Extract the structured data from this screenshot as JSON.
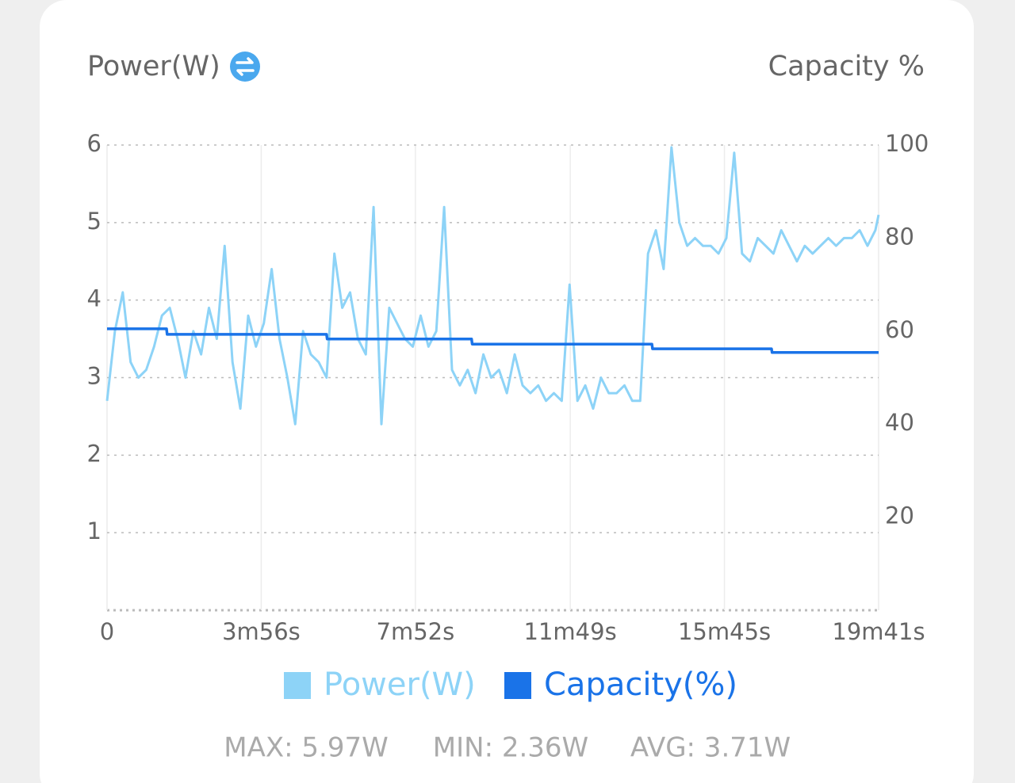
{
  "chart_data": {
    "type": "line",
    "y_label": "Power(W)",
    "y2_label": "Capacity %",
    "xlim": [
      0,
      1181
    ],
    "xticks": [
      0,
      {
        "value": 236,
        "label": "3m56s"
      },
      {
        "value": 472,
        "label": "7m52s"
      },
      {
        "value": 709,
        "label": "11m49s"
      },
      {
        "value": 945,
        "label": "15m45s"
      },
      {
        "value": 1181,
        "label": "19m41s"
      }
    ],
    "ylim": [
      0,
      6
    ],
    "yticks": [
      1,
      2,
      3,
      4,
      5,
      6
    ],
    "y2lim": [
      0,
      100
    ],
    "y2ticks": [
      20,
      40,
      60,
      80,
      100
    ],
    "grid": true,
    "series": [
      {
        "name": "Power(W)",
        "color": "#8dd3f7",
        "x": [
          0,
          12,
          24,
          36,
          48,
          60,
          72,
          84,
          96,
          108,
          120,
          132,
          144,
          156,
          168,
          180,
          192,
          204,
          216,
          228,
          240,
          252,
          264,
          276,
          288,
          300,
          312,
          324,
          336,
          348,
          360,
          372,
          384,
          396,
          408,
          420,
          432,
          444,
          456,
          468,
          480,
          492,
          504,
          516,
          528,
          540,
          552,
          564,
          576,
          588,
          600,
          612,
          624,
          636,
          648,
          660,
          672,
          684,
          696,
          708,
          720,
          732,
          744,
          756,
          768,
          780,
          792,
          804,
          816,
          828,
          840,
          852,
          864,
          876,
          888,
          900,
          912,
          924,
          936,
          948,
          960,
          972,
          984,
          996,
          1008,
          1020,
          1032,
          1044,
          1056,
          1068,
          1080,
          1092,
          1104,
          1116,
          1128,
          1140,
          1152,
          1164,
          1176,
          1181
        ],
        "values": [
          2.7,
          3.6,
          4.1,
          3.2,
          3.0,
          3.1,
          3.4,
          3.8,
          3.9,
          3.5,
          3.0,
          3.6,
          3.3,
          3.9,
          3.5,
          4.7,
          3.2,
          2.6,
          3.8,
          3.4,
          3.7,
          4.4,
          3.5,
          3.0,
          2.4,
          3.6,
          3.3,
          3.2,
          3.0,
          4.6,
          3.9,
          4.1,
          3.5,
          3.3,
          5.2,
          2.4,
          3.9,
          3.7,
          3.5,
          3.4,
          3.8,
          3.4,
          3.6,
          5.2,
          3.1,
          2.9,
          3.1,
          2.8,
          3.3,
          3.0,
          3.1,
          2.8,
          3.3,
          2.9,
          2.8,
          2.9,
          2.7,
          2.8,
          2.7,
          4.2,
          2.7,
          2.9,
          2.6,
          3.0,
          2.8,
          2.8,
          2.9,
          2.7,
          2.7,
          4.6,
          4.9,
          4.4,
          5.97,
          5.0,
          4.7,
          4.8,
          4.7,
          4.7,
          4.6,
          4.8,
          5.9,
          4.6,
          4.5,
          4.8,
          4.7,
          4.6,
          4.9,
          4.7,
          4.5,
          4.7,
          4.6,
          4.7,
          4.8,
          4.7,
          4.8,
          4.8,
          4.9,
          4.7,
          4.9,
          5.1
        ]
      },
      {
        "name": "Capacity(%)",
        "color": "#1a73e8",
        "axis": "y2",
        "x": [
          0,
          91,
          92,
          336,
          337,
          558,
          559,
          834,
          835,
          1017,
          1018,
          1181
        ],
        "values": [
          60.5,
          60.5,
          59.3,
          59.3,
          58.3,
          58.3,
          57.2,
          57.2,
          56.2,
          56.2,
          55.4,
          55.4
        ]
      }
    ],
    "stats": [
      "MAX: 5.97W",
      "MIN: 2.36W",
      "AVG: 3.71W"
    ]
  }
}
